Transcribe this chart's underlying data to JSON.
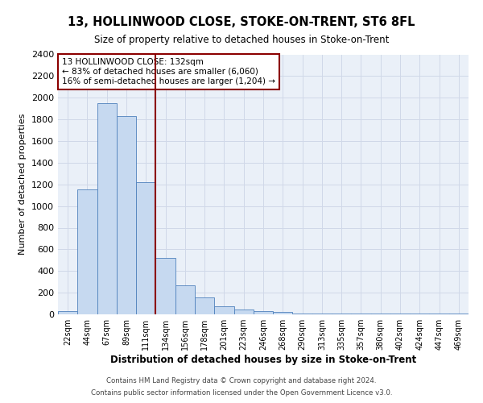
{
  "title": "13, HOLLINWOOD CLOSE, STOKE-ON-TRENT, ST6 8FL",
  "subtitle": "Size of property relative to detached houses in Stoke-on-Trent",
  "xlabel": "Distribution of detached houses by size in Stoke-on-Trent",
  "ylabel": "Number of detached properties",
  "footnote1": "Contains HM Land Registry data © Crown copyright and database right 2024.",
  "footnote2": "Contains public sector information licensed under the Open Government Licence v3.0.",
  "bar_labels": [
    "22sqm",
    "44sqm",
    "67sqm",
    "89sqm",
    "111sqm",
    "134sqm",
    "156sqm",
    "178sqm",
    "201sqm",
    "223sqm",
    "246sqm",
    "268sqm",
    "290sqm",
    "313sqm",
    "335sqm",
    "357sqm",
    "380sqm",
    "402sqm",
    "424sqm",
    "447sqm",
    "469sqm"
  ],
  "bar_values": [
    30,
    1150,
    1950,
    1830,
    1220,
    520,
    270,
    155,
    75,
    45,
    30,
    20,
    10,
    10,
    5,
    5,
    5,
    5,
    5,
    5,
    10
  ],
  "bar_color": "#c6d9f0",
  "bar_edge_color": "#4f81bd",
  "vline_color": "#8b0000",
  "annotation_text": "13 HOLLINWOOD CLOSE: 132sqm\n← 83% of detached houses are smaller (6,060)\n16% of semi-detached houses are larger (1,204) →",
  "annotation_box_color": "#8b0000",
  "ylim": [
    0,
    2400
  ],
  "yticks": [
    0,
    200,
    400,
    600,
    800,
    1000,
    1200,
    1400,
    1600,
    1800,
    2000,
    2200,
    2400
  ],
  "grid_color": "#d0d8e8",
  "bg_color": "#eaf0f8"
}
